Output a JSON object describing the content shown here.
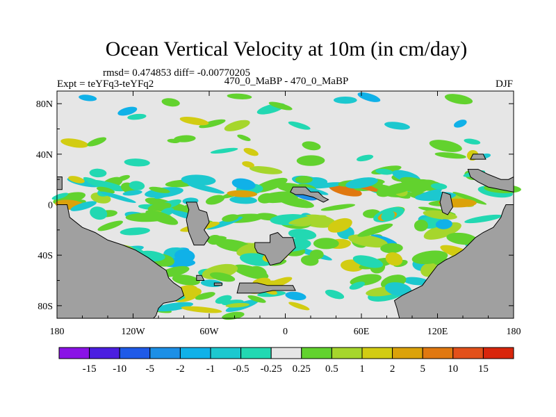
{
  "chart_data": {
    "type": "heatmap",
    "title": "Ocean Vertical Velocity at 10m (in cm/day)",
    "stats": "rmsd= 0.474853 diff= -0.00770205",
    "left_label": "Expt = teYFq3-teYFq2",
    "center_label": "470_0_MaBP - 470_0_MaBP",
    "right_label": "DJF",
    "x_ticks": [
      "180",
      "120W",
      "60W",
      "0",
      "60E",
      "120E",
      "180"
    ],
    "y_ticks": [
      "80N",
      "40N",
      "0",
      "40S",
      "80S"
    ],
    "lon_range": [
      -180,
      180
    ],
    "lat_range": [
      -90,
      90
    ],
    "colorbar": {
      "labels": [
        "-15",
        "-10",
        "-5",
        "-2",
        "-1",
        "-0.5",
        "-0.25",
        "0.25",
        "0.5",
        "1",
        "2",
        "5",
        "10",
        "15"
      ],
      "colors": [
        "#8a12e6",
        "#4b1ee0",
        "#1f5ae8",
        "#1c8fe6",
        "#10b1e8",
        "#1cc8cf",
        "#22d8b2",
        "#e6e6e6",
        "#62d22e",
        "#a6d62c",
        "#d2cc12",
        "#dba20a",
        "#e07810",
        "#e2501a",
        "#d8260c"
      ]
    },
    "land_color": "#a0a0a0",
    "ocean_neutral_color": "#e6e6e6"
  }
}
